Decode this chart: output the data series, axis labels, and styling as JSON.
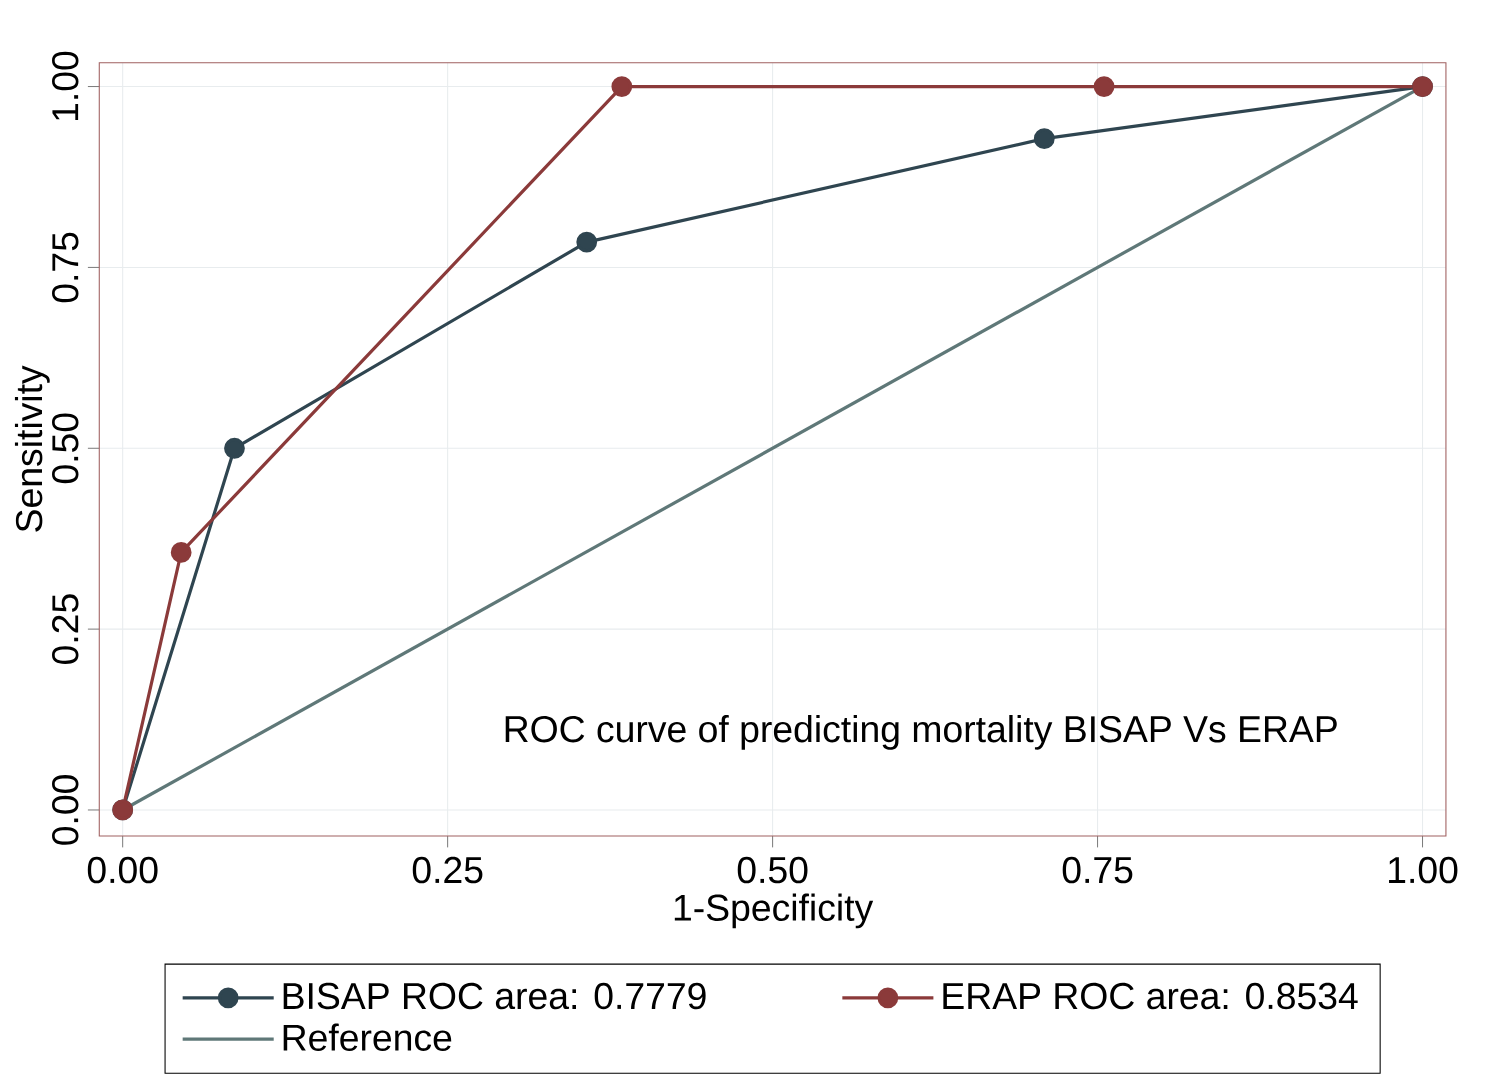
{
  "chart_data": {
    "type": "line",
    "xlabel": "1-Specificity",
    "ylabel": "Sensitivity",
    "xlim": [
      -0.018,
      1.018
    ],
    "ylim": [
      -0.036,
      1.033
    ],
    "xticks": [
      {
        "value": 0,
        "label": "0.00"
      },
      {
        "value": 0.25,
        "label": "0.25"
      },
      {
        "value": 0.5,
        "label": "0.50"
      },
      {
        "value": 0.75,
        "label": "0.75"
      },
      {
        "value": 1,
        "label": "1.00"
      }
    ],
    "yticks": [
      {
        "value": 0,
        "label": "0.00"
      },
      {
        "value": 0.25,
        "label": "0.25"
      },
      {
        "value": 0.5,
        "label": "0.50"
      },
      {
        "value": 0.75,
        "label": "0.75"
      },
      {
        "value": 1,
        "label": "1.00"
      }
    ],
    "grid": true,
    "legend": "bottom",
    "annotations": [
      "ROC curve of predicting mortality  BISAP Vs ERAP"
    ],
    "series": [
      {
        "name": "BISAP ROC area: 0.7779",
        "color": "#2f4550",
        "marker": "circle",
        "x": [
          0,
          0.086,
          0.357,
          0.709,
          1
        ],
        "values": [
          0,
          0.5,
          0.785,
          0.928,
          1
        ]
      },
      {
        "name": "ERAP ROC area: 0.8534",
        "color": "#8b3a3a",
        "marker": "circle",
        "x": [
          0,
          0.045,
          0.384,
          0.755,
          1
        ],
        "values": [
          0,
          0.356,
          1,
          1,
          1
        ]
      },
      {
        "name": "Reference",
        "color": "#5f7878",
        "marker": "none",
        "x": [
          0,
          1
        ],
        "values": [
          0,
          1
        ]
      }
    ]
  }
}
